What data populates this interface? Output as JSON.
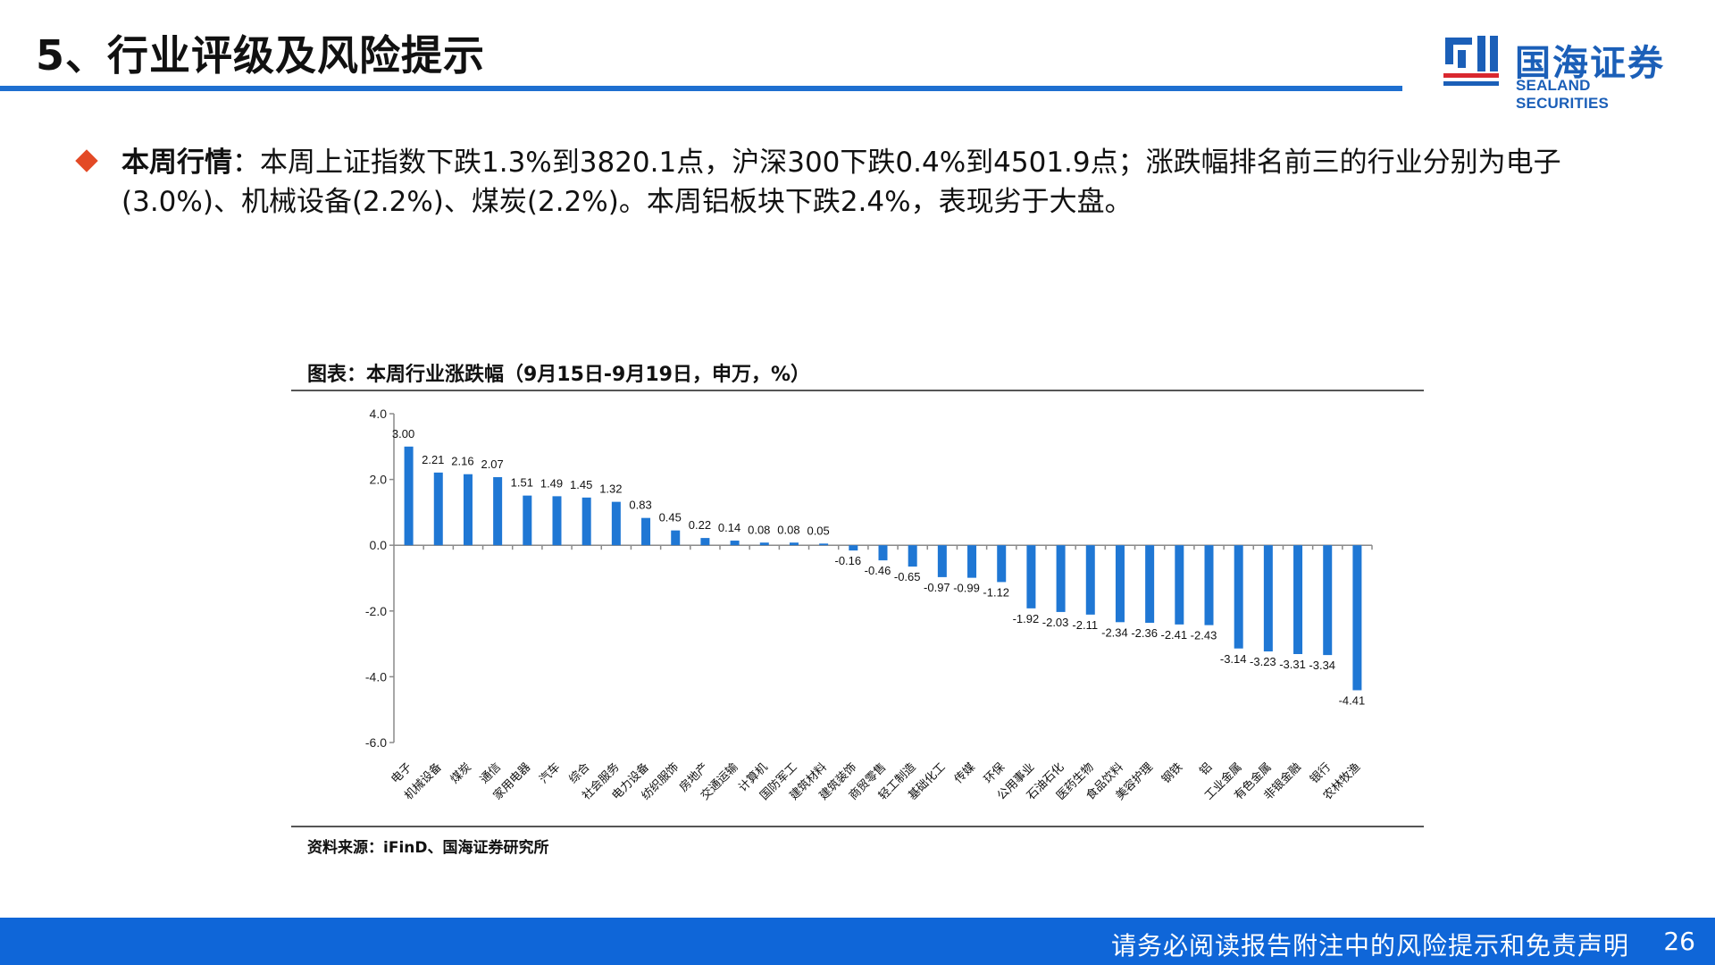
{
  "header": {
    "title": "5、行业评级及风险提示",
    "logo_cn": "国海证券",
    "logo_en": "SEALAND SECURITIES",
    "accent_color": "#1e6fd0"
  },
  "bullet": {
    "icon": "diamond-icon",
    "icon_color": "#e34a26",
    "label": "本周行情",
    "text": "：本周上证指数下跌1.3%到3820.1点，沪深300下跌0.4%到4501.9点；涨跌幅排名前三的行业分别为电子(3.0%)、机械设备(2.2%)、煤炭(2.2%)。本周铝板块下跌2.4%，表现劣于大盘。"
  },
  "chart_title": "图表：本周行业涨跌幅（9月15日-9月19日，申万，%）",
  "source": "资料来源：iFinD、国海证券研究所",
  "footer": {
    "disclaimer": "请务必阅读报告附注中的风险提示和免责声明",
    "page": "26",
    "bg_color": "#0f66d8"
  },
  "chart_data": {
    "type": "bar",
    "title": "",
    "xlabel": "",
    "ylabel": "",
    "ylim": [
      -6.0,
      4.0
    ],
    "yticks": [
      "4.0",
      "2.0",
      "0.0",
      "-2.0",
      "-4.0",
      "-6.0"
    ],
    "ytick_values": [
      4,
      2,
      0,
      -2,
      -4,
      -6
    ],
    "grid": false,
    "bar_color": "#1f77d4",
    "categories": [
      "电子",
      "机械设备",
      "煤炭",
      "通信",
      "家用电器",
      "汽车",
      "综合",
      "社会服务",
      "电力设备",
      "纺织服饰",
      "房地产",
      "交通运输",
      "计算机",
      "国防军工",
      "建筑材料",
      "建筑装饰",
      "商贸零售",
      "轻工制造",
      "基础化工",
      "传媒",
      "环保",
      "公用事业",
      "石油石化",
      "医药生物",
      "食品饮料",
      "美容护理",
      "钢铁",
      "铝",
      "工业金属",
      "有色金属",
      "非银金融",
      "银行",
      "农林牧渔"
    ],
    "values": [
      3.0,
      2.21,
      2.16,
      2.07,
      1.51,
      1.49,
      1.45,
      1.32,
      0.83,
      0.45,
      0.22,
      0.14,
      0.08,
      0.08,
      0.05,
      -0.16,
      -0.46,
      -0.65,
      -0.97,
      -0.99,
      -1.12,
      -1.92,
      -2.03,
      -2.11,
      -2.34,
      -2.36,
      -2.41,
      -2.43,
      -3.14,
      -3.23,
      -3.31,
      -3.34,
      -4.41
    ],
    "value_labels": [
      "3.00",
      "2.21",
      "2.16",
      "2.07",
      "1.51",
      "1.49",
      "1.45",
      "1.32",
      "0.83",
      "0.45",
      "0.22",
      "0.14",
      "0.08",
      "0.08",
      "0.05",
      "-0.16",
      "-0.46",
      "-0.65",
      "-0.97",
      "-0.99",
      "-1.12",
      "-1.92",
      "-2.03",
      "-2.11",
      "-2.34",
      "-2.36",
      "-2.41",
      "-2.43",
      "-3.14",
      "-3.23",
      "-3.31",
      "-3.34",
      "-4.41"
    ]
  }
}
